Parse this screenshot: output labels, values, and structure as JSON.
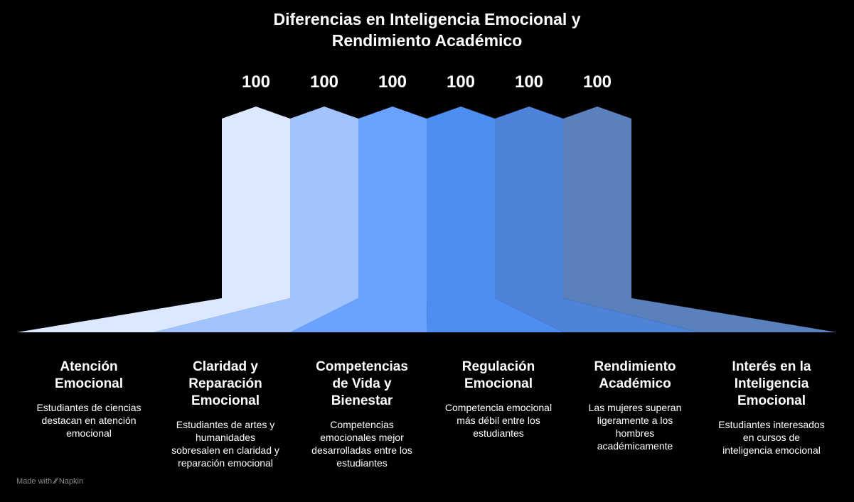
{
  "title": {
    "line1": "Diferencias en Inteligencia Emocional y",
    "line2": "Rendimiento Académico"
  },
  "chart_data": {
    "type": "bar",
    "values": [
      100,
      100,
      100,
      100,
      100,
      100
    ],
    "colors": [
      "#dbe8ff",
      "#a1c4ff",
      "#6aa3ff",
      "#4d8ff0",
      "#4f82d9",
      "#5a80bd"
    ]
  },
  "items": [
    {
      "heading": "Atención Emocional",
      "heading_lines": [
        "Atención",
        "Emocional"
      ],
      "desc_lines": [
        "Estudiantes de ciencias",
        "destacan en atención",
        "emocional"
      ]
    },
    {
      "heading": "Claridad y Reparación Emocional",
      "heading_lines": [
        "Claridad y",
        "Reparación",
        "Emocional"
      ],
      "desc_lines": [
        "Estudiantes de artes y",
        "humanidades",
        "sobresalen en claridad y",
        "reparación emocional"
      ]
    },
    {
      "heading": "Competencias de Vida y Bienestar",
      "heading_lines": [
        "Competencias",
        "de Vida y",
        "Bienestar"
      ],
      "desc_lines": [
        "Competencias",
        "emocionales mejor",
        "desarrolladas entre los",
        "estudiantes"
      ]
    },
    {
      "heading": "Regulación Emocional",
      "heading_lines": [
        "Regulación",
        "Emocional"
      ],
      "desc_lines": [
        "Competencia emocional",
        "más débil entre los",
        "estudiantes"
      ]
    },
    {
      "heading": "Rendimiento Académico",
      "heading_lines": [
        "Rendimiento",
        "Académico"
      ],
      "desc_lines": [
        "Las mujeres superan",
        "ligeramente a los",
        "hombres",
        "académicamente"
      ]
    },
    {
      "heading": "Interés en la Inteligencia Emocional",
      "heading_lines": [
        "Interés en la",
        "Inteligencia",
        "Emocional"
      ],
      "desc_lines": [
        "Estudiantes interesados",
        "en cursos de",
        "inteligencia emocional"
      ]
    }
  ],
  "footer": {
    "prefix": "Made with",
    "glyph": "⁄⁄",
    "brand": "Napkin"
  }
}
